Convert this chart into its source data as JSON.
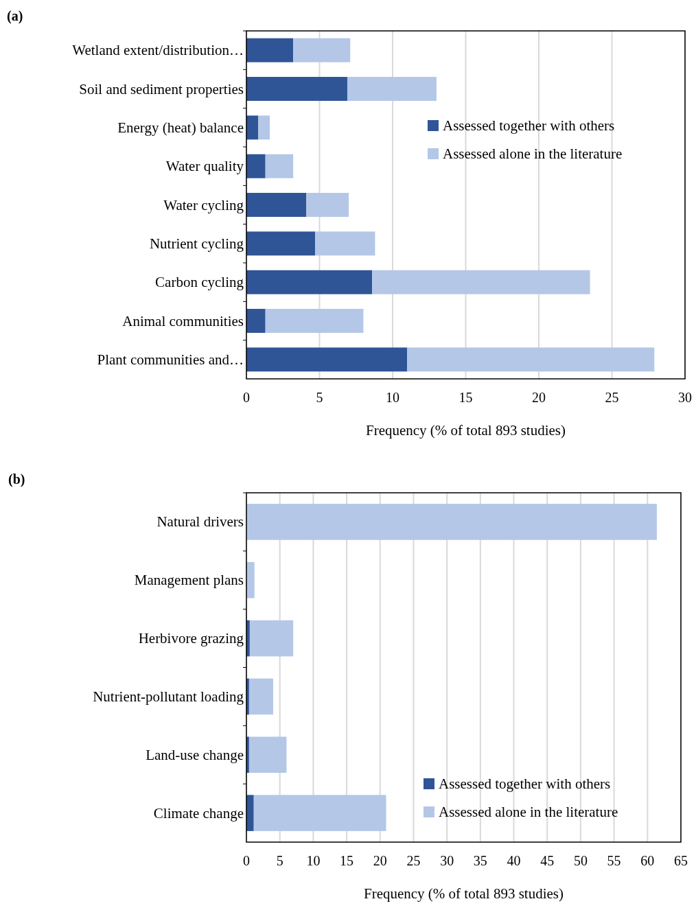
{
  "chart_data": [
    {
      "type": "bar",
      "title": "(a)",
      "orientation": "horizontal",
      "stacked": true,
      "xlabel": "Frequency (% of total 893 studies)",
      "categories": [
        "Wetland extent/distribution…",
        "Soil and sediment properties",
        "Energy (heat) balance",
        "Water quality",
        "Water cycling",
        "Nutrient cycling",
        "Carbon cycling",
        "Animal communities",
        "Plant communities and…"
      ],
      "series": [
        {
          "name": "Assessed together with others",
          "color": "#2f5597",
          "values": [
            3.2,
            6.9,
            0.8,
            1.3,
            4.1,
            4.7,
            8.6,
            1.3,
            11.0
          ]
        },
        {
          "name": "Assessed alone in the literature",
          "color": "#b4c7e7",
          "values": [
            3.9,
            6.1,
            0.8,
            1.9,
            2.9,
            4.1,
            14.9,
            6.7,
            16.9
          ]
        }
      ],
      "xlim": [
        0,
        30
      ],
      "xticks": [
        0,
        5,
        10,
        15,
        20,
        25,
        30
      ],
      "grid": "x",
      "legend": "top right"
    },
    {
      "type": "bar",
      "title": "(b)",
      "orientation": "horizontal",
      "stacked": true,
      "xlabel": "Frequency (% of total 893 studies)",
      "categories": [
        "Natural drivers",
        "Management plans",
        "Herbivore grazing",
        "Nutrient-pollutant loading",
        "Land-use change",
        "Climate change"
      ],
      "series": [
        {
          "name": "Assessed together with others",
          "color": "#2f5597",
          "values": [
            0,
            0,
            0.5,
            0.4,
            0.4,
            1.1
          ]
        },
        {
          "name": "Assessed alone in the literature",
          "color": "#b4c7e7",
          "values": [
            61.4,
            1.2,
            6.5,
            3.6,
            5.6,
            19.8
          ]
        }
      ],
      "xlim": [
        0,
        65
      ],
      "xticks": [
        0,
        5,
        10,
        15,
        20,
        25,
        30,
        35,
        40,
        45,
        50,
        55,
        60,
        65
      ],
      "grid": "x",
      "legend": "bottom right"
    }
  ]
}
